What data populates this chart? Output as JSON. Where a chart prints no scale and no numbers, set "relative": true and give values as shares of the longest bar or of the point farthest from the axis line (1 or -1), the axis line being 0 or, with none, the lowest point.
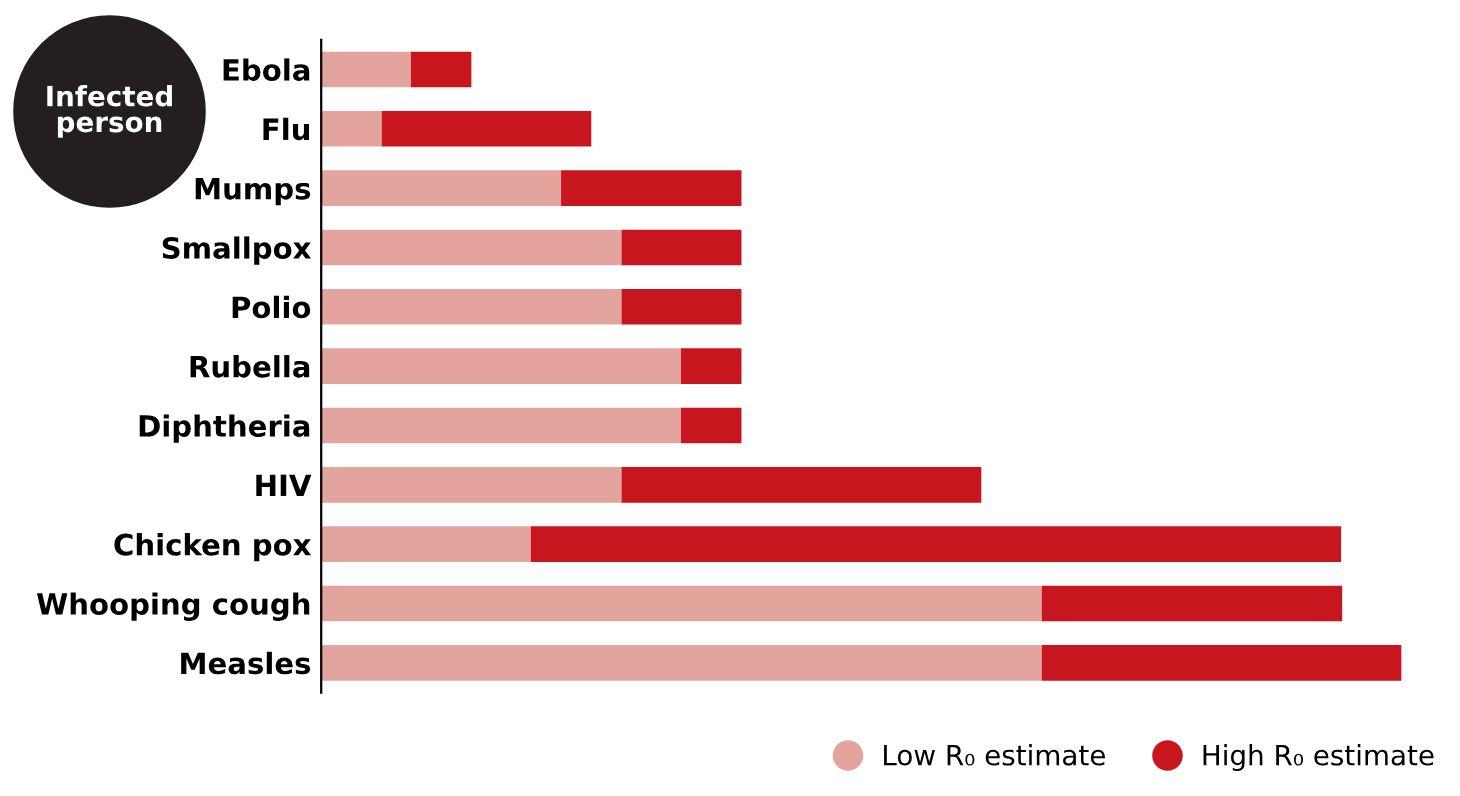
{
  "chart_data": {
    "type": "bar",
    "orientation": "horizontal",
    "stacked": true,
    "relative": true,
    "legend": "bottom right",
    "categories": [
      "Ebola",
      "Flu",
      "Mumps",
      "Smallpox",
      "Polio",
      "Rubella",
      "Diphtheria",
      "HIV",
      "Chicken pox",
      "Whooping cough",
      "Measles"
    ],
    "series": [
      {
        "name": "Low R₀ estimate",
        "color": "#e3a49e",
        "values": [
          0.083,
          0.056,
          0.222,
          0.278,
          0.278,
          0.333,
          0.333,
          0.278,
          0.194,
          0.667,
          0.667
        ]
      },
      {
        "name": "High R₀ estimate",
        "color": "#c8161e",
        "values": [
          0.056,
          0.194,
          0.167,
          0.111,
          0.111,
          0.056,
          0.056,
          0.333,
          0.75,
          0.278,
          0.333
        ]
      }
    ],
    "annotations": [
      "Infected person"
    ]
  }
}
